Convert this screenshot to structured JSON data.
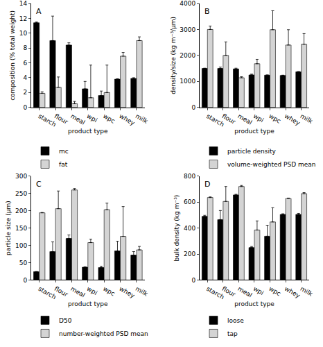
{
  "chart_data": [
    {
      "type": "bar",
      "title": "A",
      "x_label": "product type",
      "y_label": "composition (% total weight)",
      "categories": [
        "starch",
        "flour",
        "meal",
        "wpi",
        "wpc",
        "whey",
        "milk"
      ],
      "series": [
        {
          "name": "mc",
          "color": "#000000",
          "values": [
            11.4,
            9.0,
            8.4,
            2.5,
            1.6,
            3.8,
            3.9
          ],
          "errors": [
            0.1,
            3.3,
            0.3,
            1.0,
            0.6,
            0.05,
            0.1
          ]
        },
        {
          "name": "fat",
          "color": "#d4d4d4",
          "values": [
            1.9,
            2.7,
            0.5,
            1.3,
            2.0,
            6.9,
            9.0
          ],
          "errors": [
            0.2,
            1.4,
            0.3,
            4.4,
            3.7,
            0.5,
            0.5
          ]
        }
      ],
      "ylim": [
        0,
        14
      ],
      "yticks": [
        0,
        2,
        4,
        6,
        8,
        10,
        12,
        14
      ],
      "grid": false,
      "legend": "bottom"
    },
    {
      "type": "bar",
      "title": "B",
      "x_label": "product type",
      "y_label": "density/size (kg m⁻³/μm)",
      "categories": [
        "starch",
        "flour",
        "meal",
        "wpi",
        "wpc",
        "whey",
        "milk"
      ],
      "series": [
        {
          "name": "particle density",
          "color": "#000000",
          "values": [
            1500,
            1500,
            1480,
            1250,
            1240,
            1230,
            1370
          ],
          "errors": [
            10,
            50,
            30,
            30,
            10,
            10,
            10
          ]
        },
        {
          "name": "volume-weighted PSD mean",
          "color": "#d4d4d4",
          "values": [
            3000,
            2000,
            1140,
            1680,
            2990,
            2400,
            2430
          ],
          "errors": [
            130,
            520,
            40,
            170,
            730,
            590,
            410
          ]
        }
      ],
      "ylim": [
        0,
        4000
      ],
      "yticks": [
        0,
        1000,
        2000,
        3000,
        4000
      ],
      "grid": false,
      "legend": "bottom"
    },
    {
      "type": "bar",
      "title": "C",
      "x_label": "product type",
      "y_label": "particle size (μm)",
      "categories": [
        "starch",
        "flour",
        "meal",
        "wpi",
        "wpc",
        "whey",
        "milk"
      ],
      "series": [
        {
          "name": "D50",
          "color": "#000000",
          "values": [
            24,
            82,
            120,
            37,
            36,
            84,
            72
          ],
          "errors": [
            0.5,
            28,
            10,
            1,
            4,
            28,
            10
          ]
        },
        {
          "name": "number-weighted PSD mean",
          "color": "#d4d4d4",
          "values": [
            194,
            206,
            260,
            108,
            203,
            126,
            87
          ],
          "errors": [
            1,
            51,
            4,
            10,
            19,
            86,
            10
          ]
        }
      ],
      "ylim": [
        0,
        300
      ],
      "yticks": [
        0,
        50,
        100,
        150,
        200,
        250,
        300
      ],
      "grid": false,
      "legend": "bottom"
    },
    {
      "type": "bar",
      "title": "D",
      "x_label": "product type",
      "y_label": "bulk density (kg m⁻³)",
      "categories": [
        "starch",
        "flour",
        "meal",
        "wpi",
        "wpc",
        "whey",
        "milk"
      ],
      "series": [
        {
          "name": "loose",
          "color": "#000000",
          "values": [
            490,
            465,
            655,
            250,
            337,
            505,
            505
          ],
          "errors": [
            8,
            70,
            5,
            8,
            85,
            5,
            8
          ]
        },
        {
          "name": "tap",
          "color": "#d4d4d4",
          "values": [
            635,
            605,
            720,
            385,
            447,
            628,
            665
          ],
          "errors": [
            5,
            115,
            8,
            70,
            110,
            3,
            8
          ]
        }
      ],
      "ylim": [
        0,
        800
      ],
      "yticks": [
        0,
        200,
        400,
        600,
        800
      ],
      "grid": false,
      "legend": "bottom"
    }
  ]
}
